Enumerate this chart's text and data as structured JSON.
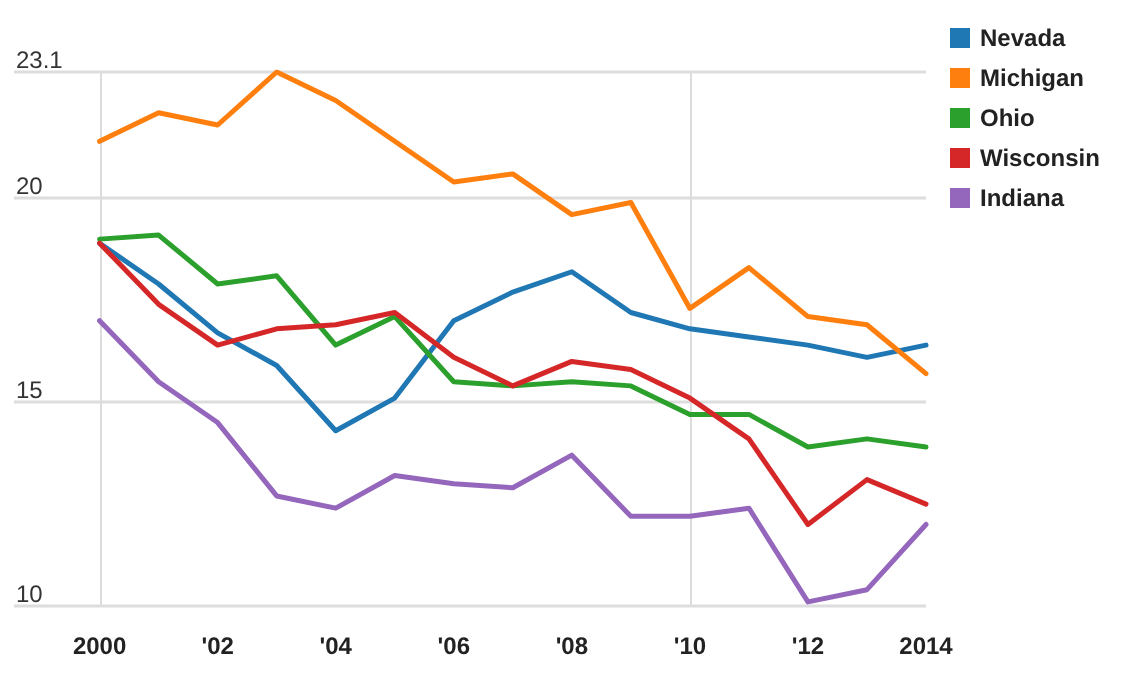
{
  "chart_data": {
    "type": "line",
    "x": [
      2000,
      2001,
      2002,
      2003,
      2004,
      2005,
      2006,
      2007,
      2008,
      2009,
      2010,
      2011,
      2012,
      2013,
      2014
    ],
    "xlim": [
      1998.55,
      2014
    ],
    "xticks": [
      {
        "value": 2000,
        "label": "2000"
      },
      {
        "value": 2002,
        "label": "'02"
      },
      {
        "value": 2004,
        "label": "'04"
      },
      {
        "value": 2006,
        "label": "'06"
      },
      {
        "value": 2008,
        "label": "'08"
      },
      {
        "value": 2010,
        "label": "'10"
      },
      {
        "value": 2012,
        "label": "'12"
      },
      {
        "value": 2014,
        "label": "2014"
      }
    ],
    "ylim": [
      10,
      23.1
    ],
    "yticks": [
      10,
      15,
      20,
      23.1
    ],
    "grid": "y",
    "legend": "top right",
    "marker": "none",
    "line_style": "solid",
    "ref_lines": [
      {
        "axis": "x",
        "value": 2000,
        "label": null,
        "color": "#dddddd"
      },
      {
        "axis": "x",
        "value": 2010,
        "label": null,
        "color": "#dddddd"
      }
    ],
    "series": [
      {
        "name": "Nevada",
        "color": "#1f77b4",
        "values": [
          18.9,
          17.9,
          16.7,
          15.9,
          14.3,
          15.1,
          17.0,
          17.7,
          18.2,
          17.2,
          16.8,
          16.6,
          16.4,
          16.1,
          16.4
        ]
      },
      {
        "name": "Michigan",
        "color": "#ff7f0e",
        "values": [
          21.4,
          22.1,
          21.8,
          23.1,
          22.4,
          21.4,
          20.4,
          20.6,
          19.6,
          19.9,
          17.3,
          18.3,
          17.1,
          16.9,
          15.7
        ]
      },
      {
        "name": "Ohio",
        "color": "#2ca02c",
        "values": [
          19.0,
          19.1,
          17.9,
          18.1,
          16.4,
          17.1,
          15.5,
          15.4,
          15.5,
          15.4,
          14.7,
          14.7,
          13.9,
          14.1,
          13.9
        ]
      },
      {
        "name": "Wisconsin",
        "color": "#d62728",
        "values": [
          18.9,
          17.4,
          16.4,
          16.8,
          16.9,
          17.2,
          16.1,
          15.4,
          16.0,
          15.8,
          15.1,
          14.1,
          12.0,
          13.1,
          12.5
        ]
      },
      {
        "name": "Indiana",
        "color": "#9467bd",
        "values": [
          17.0,
          15.5,
          14.5,
          12.7,
          12.4,
          13.2,
          13.0,
          12.9,
          13.7,
          12.2,
          12.2,
          12.4,
          10.1,
          10.4,
          12.0
        ]
      }
    ]
  }
}
